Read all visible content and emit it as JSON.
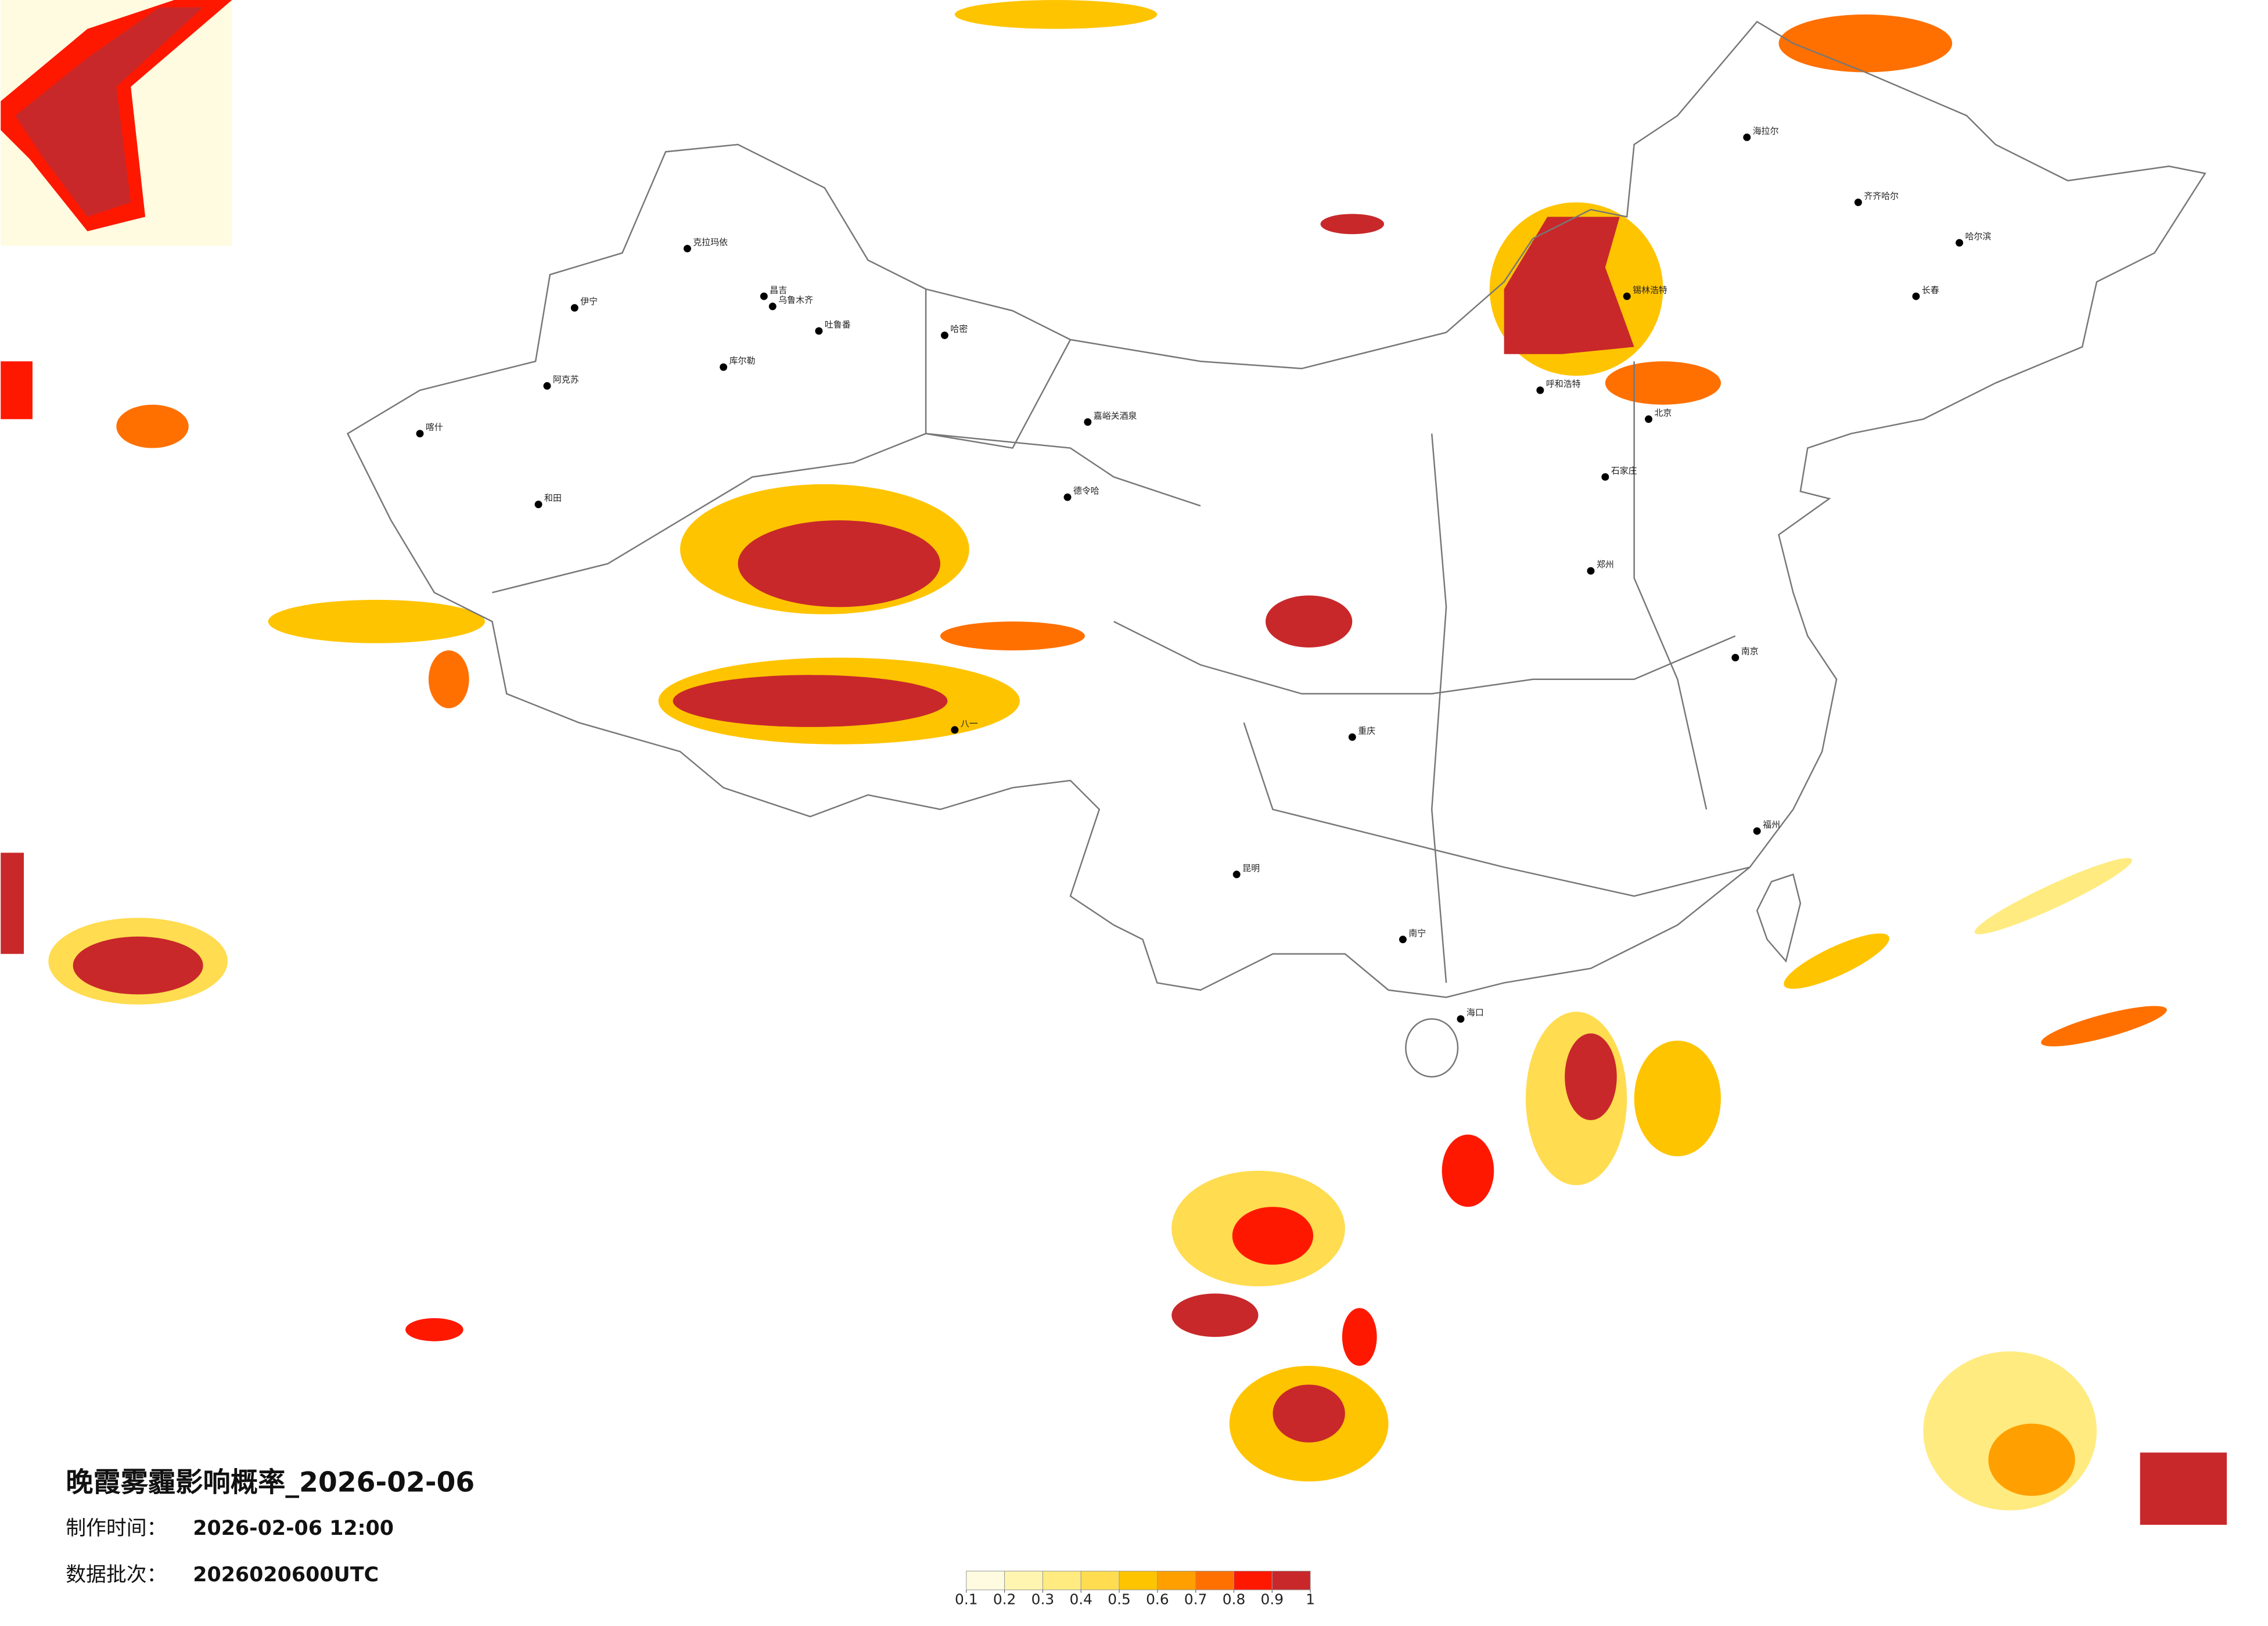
{
  "title": "晚霞雾霾影响概率_2026-02-06",
  "info": [
    {
      "label": "制作时间：",
      "value": "2026-02-06 12:00"
    },
    {
      "label": "数据批次：",
      "value": "2026020600UTC"
    }
  ],
  "legend": {
    "ticks": [
      0.1,
      0.2,
      0.3,
      0.4,
      0.5,
      0.6,
      0.7,
      0.8,
      0.9,
      1
    ],
    "colors": [
      "#fffbe0",
      "#fff5b0",
      "#ffeb80",
      "#ffdc50",
      "#ffc400",
      "#ffa000",
      "#ff7000",
      "#ff1800",
      "#c8282a"
    ]
  },
  "cities": [
    "克拉玛依",
    "伊宁",
    "昌吉",
    "乌鲁木齐",
    "吐鲁番",
    "哈密",
    "库尔勒",
    "阿克苏",
    "喀什",
    "和田",
    "德令哈",
    "嘉峪关酒泉",
    "八一",
    "呼和浩特",
    "北京",
    "石家庄",
    "郑州",
    "南京",
    "福州",
    "南宁",
    "昆明",
    "重庆",
    "哈尔滨",
    "长春",
    "海口",
    "齐齐哈尔",
    "锡林浩特",
    "海拉尔"
  ]
}
